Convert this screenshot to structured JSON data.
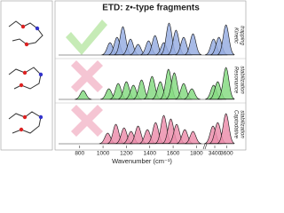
{
  "figure": {
    "title": "ETD: z•-type fragments",
    "x_label": "Wavenumber (cm⁻¹)",
    "x_segments": [
      [
        650,
        1850
      ],
      [
        3250,
        3700
      ]
    ],
    "xticks": [
      800,
      1000,
      1200,
      1400,
      1600,
      1800,
      3400,
      3600
    ],
    "ylim": [
      0,
      1
    ],
    "rows": [
      {
        "label": [
          "Kinetic",
          "trapping"
        ],
        "color": "#98aee2",
        "x": [
          1060,
          1120,
          1170,
          1235,
          1300,
          1390,
          1445,
          1520,
          1565,
          1625,
          1690,
          1770,
          3380,
          3470,
          3590
        ],
        "values": [
          0.35,
          0.5,
          0.8,
          0.45,
          0.3,
          0.4,
          0.55,
          0.35,
          0.9,
          0.7,
          0.5,
          0.6,
          0.45,
          0.5,
          0.85
        ]
      },
      {
        "label": [
          "Resonance",
          "stabilization"
        ],
        "color": "#86db82",
        "x": [
          830,
          1050,
          1130,
          1200,
          1260,
          1330,
          1420,
          1490,
          1560,
          1610,
          1690,
          1760,
          3380,
          3450,
          3590
        ],
        "values": [
          0.25,
          0.3,
          0.45,
          0.5,
          0.4,
          0.55,
          0.65,
          0.5,
          0.85,
          0.75,
          0.45,
          0.3,
          0.4,
          0.5,
          0.9
        ]
      },
      {
        "label": [
          "Captodative",
          "stabilization"
        ],
        "color": "#ec8fad",
        "x": [
          1040,
          1110,
          1180,
          1240,
          1300,
          1380,
          1450,
          1520,
          1580,
          1630,
          1700,
          1770,
          3370,
          3450,
          3590
        ],
        "values": [
          0.3,
          0.55,
          0.45,
          0.35,
          0.5,
          0.4,
          0.6,
          0.8,
          0.7,
          0.55,
          0.4,
          0.35,
          0.5,
          0.6,
          0.85
        ]
      }
    ]
  }
}
